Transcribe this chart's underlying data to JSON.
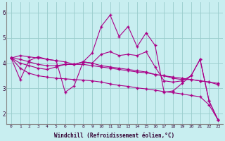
{
  "xlabel": "Windchill (Refroidissement éolien,°C)",
  "background_color": "#c8eef0",
  "line_color": "#aa0088",
  "grid_color": "#99cccc",
  "xlim": [
    -0.5,
    23.5
  ],
  "ylim": [
    1.6,
    6.4
  ],
  "yticks": [
    2,
    3,
    4,
    5,
    6
  ],
  "xticks": [
    0,
    1,
    2,
    3,
    4,
    5,
    6,
    7,
    8,
    9,
    10,
    11,
    12,
    13,
    14,
    15,
    16,
    17,
    18,
    19,
    20,
    21,
    22,
    23
  ],
  "series": [
    [
      4.2,
      3.35,
      4.1,
      4.25,
      4.15,
      4.1,
      2.85,
      3.1,
      4.05,
      4.4,
      5.45,
      5.9,
      5.05,
      5.45,
      4.65,
      5.2,
      4.7,
      2.85,
      2.9,
      3.2,
      3.5,
      4.15,
      2.5,
      1.75
    ],
    [
      4.2,
      4.3,
      4.25,
      4.2,
      4.15,
      4.1,
      4.05,
      3.95,
      4.05,
      4.0,
      4.35,
      4.45,
      4.3,
      4.35,
      4.3,
      4.45,
      3.85,
      3.3,
      3.25,
      3.3,
      3.5,
      4.15,
      2.5,
      1.75
    ],
    [
      4.2,
      4.0,
      3.9,
      3.8,
      3.75,
      3.85,
      3.95,
      3.95,
      4.05,
      4.0,
      3.9,
      3.85,
      3.8,
      3.75,
      3.7,
      3.65,
      3.55,
      3.5,
      3.4,
      3.35,
      3.35,
      3.3,
      3.25,
      3.2
    ],
    [
      4.2,
      4.15,
      4.05,
      3.95,
      3.9,
      3.9,
      3.95,
      3.95,
      3.95,
      3.9,
      3.85,
      3.8,
      3.75,
      3.7,
      3.65,
      3.62,
      3.55,
      3.5,
      3.45,
      3.4,
      3.35,
      3.3,
      3.25,
      3.15
    ],
    [
      4.2,
      3.8,
      3.6,
      3.5,
      3.45,
      3.4,
      3.38,
      3.35,
      3.33,
      3.3,
      3.25,
      3.18,
      3.12,
      3.08,
      3.02,
      2.98,
      2.93,
      2.87,
      2.83,
      2.78,
      2.72,
      2.67,
      2.35,
      1.75
    ]
  ]
}
